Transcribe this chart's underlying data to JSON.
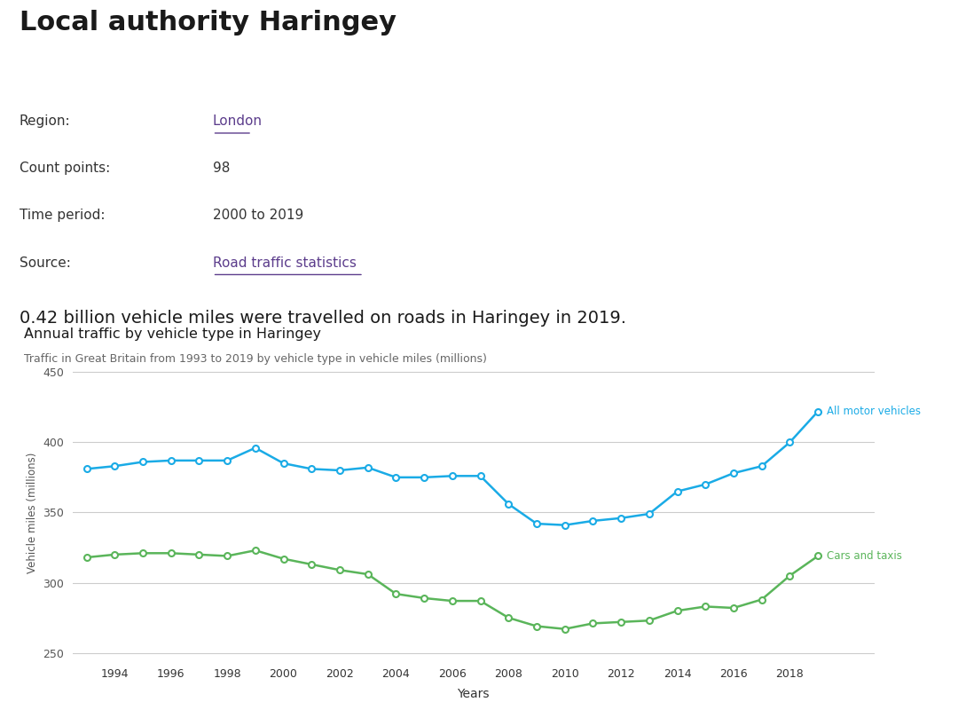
{
  "title": "Local authority Haringey",
  "meta_labels": [
    "Region:",
    "Count points:",
    "Time period:",
    "Source:"
  ],
  "meta_values": [
    "London",
    "98",
    "2000 to 2019",
    "Road traffic statistics"
  ],
  "meta_links": [
    "London",
    "Road traffic statistics"
  ],
  "highlight_text": "0.42 billion vehicle miles were travelled on roads in Haringey in 2019.",
  "chart_title": "Annual traffic by vehicle type in Haringey",
  "chart_subtitle": "Traffic in Great Britain from 1993 to 2019 by vehicle type in vehicle miles (millions)",
  "xlabel": "Years",
  "ylabel": "Vehicle miles (millions)",
  "years": [
    1993,
    1994,
    1995,
    1996,
    1997,
    1998,
    1999,
    2000,
    2001,
    2002,
    2003,
    2004,
    2005,
    2006,
    2007,
    2008,
    2009,
    2010,
    2011,
    2012,
    2013,
    2014,
    2015,
    2016,
    2017,
    2018,
    2019
  ],
  "all_motor_vehicles": [
    381,
    383,
    386,
    387,
    387,
    387,
    396,
    385,
    381,
    380,
    382,
    375,
    375,
    376,
    376,
    356,
    342,
    341,
    344,
    346,
    349,
    365,
    370,
    378,
    383,
    400,
    422
  ],
  "cars_and_taxis": [
    318,
    320,
    321,
    321,
    320,
    319,
    323,
    317,
    313,
    309,
    306,
    292,
    289,
    287,
    287,
    275,
    269,
    267,
    271,
    272,
    273,
    280,
    283,
    282,
    288,
    305,
    319
  ],
  "motor_color": "#1aabe6",
  "cars_color": "#5ab55a",
  "motor_label": "All motor vehicles",
  "cars_label": "Cars and taxis",
  "ylim": [
    245,
    455
  ],
  "yticks": [
    250,
    300,
    350,
    400,
    450
  ],
  "bg_color": "#ffffff",
  "grid_color": "#cccccc",
  "title_color": "#1a1a1a",
  "link_color": "#5c3d8c",
  "meta_label_color": "#333333",
  "highlight_color": "#1a1a1a",
  "chart_title_color": "#1a1a1a",
  "subtitle_color": "#666666",
  "xtick_positions": [
    1994,
    1996,
    1998,
    2000,
    2002,
    2004,
    2006,
    2008,
    2010,
    2012,
    2014,
    2016,
    2018
  ]
}
